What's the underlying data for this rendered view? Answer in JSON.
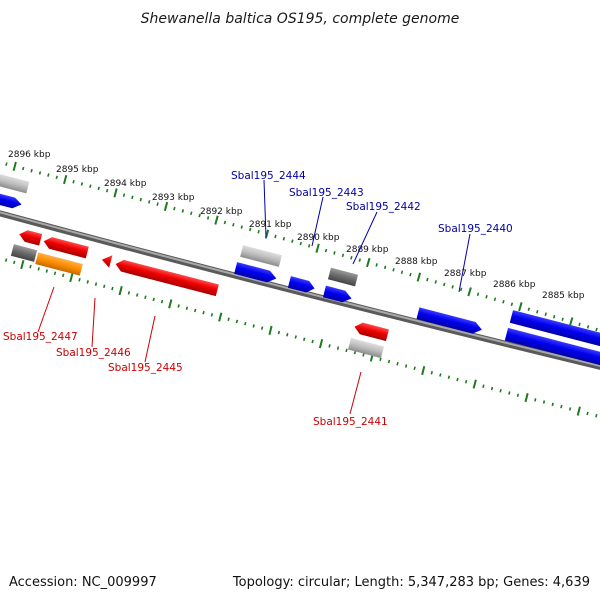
{
  "header": {
    "title": "Shewanella baltica OS195, complete genome"
  },
  "footer": {
    "accession": "Accession: NC_009997",
    "summary": "Topology: circular; Length: 5,347,283 bp; Genes: 4,639"
  },
  "colors": {
    "forward_cds": "#0000ee",
    "reverse_cds": "#ee0000",
    "other_feature": "#888888",
    "orange_feature": "#ff8c00",
    "tick": "#1e7a1e",
    "backbone": "#777777",
    "forward_label": "#0000aa",
    "reverse_label": "#cc0000"
  },
  "scale": {
    "unit": "kbp",
    "labels": [
      "2896 kbp",
      "2895 kbp",
      "2894 kbp",
      "2893 kbp",
      "2892 kbp",
      "2891 kbp",
      "2890 kbp",
      "2889 kbp",
      "2888 kbp",
      "2887 kbp",
      "2886 kbp",
      "2885 kbp"
    ]
  },
  "genes": {
    "forward": [
      "Sbal195_2444",
      "Sbal195_2443",
      "Sbal195_2442",
      "Sbal195_2440"
    ],
    "reverse": [
      "Sbal195_2447",
      "Sbal195_2446",
      "Sbal195_2445",
      "Sbal195_2441"
    ]
  }
}
